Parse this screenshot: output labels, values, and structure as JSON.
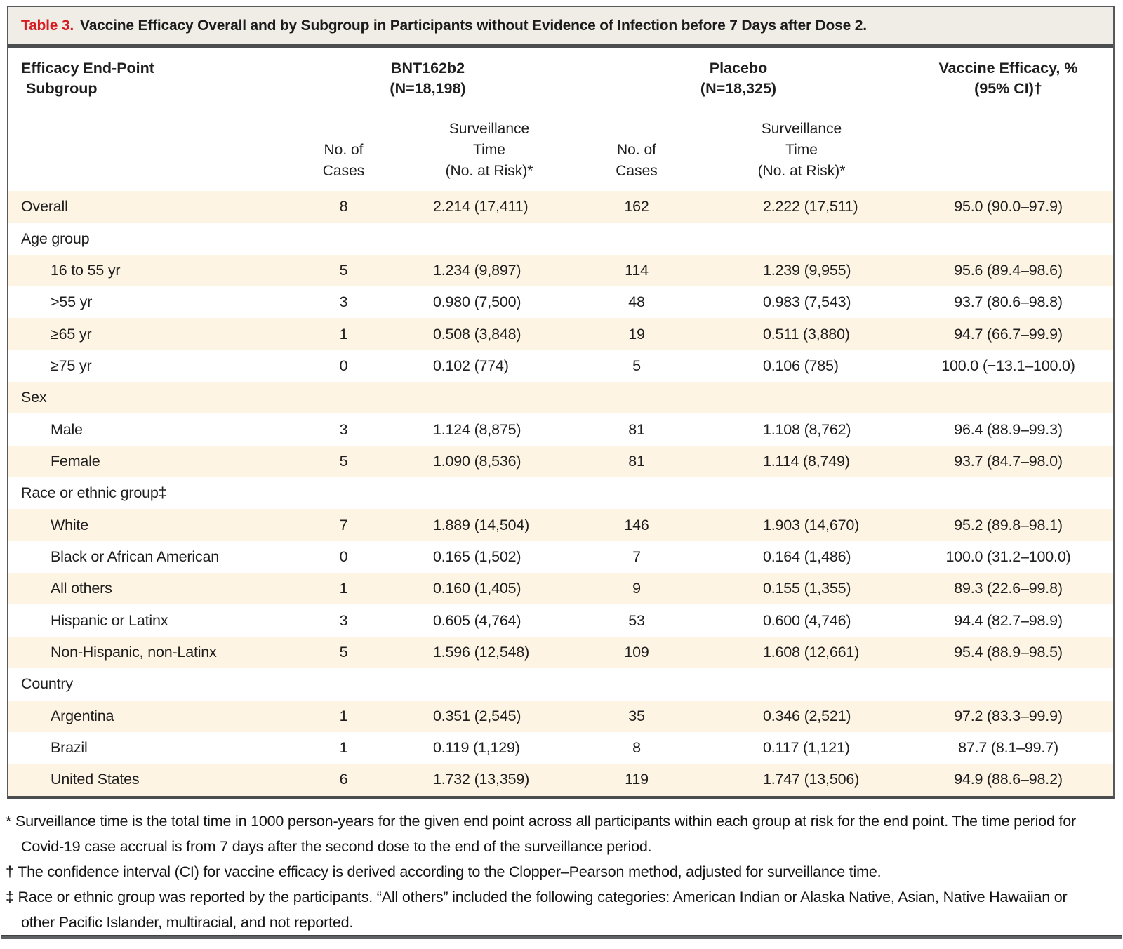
{
  "title": {
    "prefix": "Table 3.",
    "text": "Vaccine Efficacy Overall and by Subgroup in Participants without Evidence of Infection before 7 Days after Dose 2."
  },
  "colors": {
    "row_shade": "#fdf4e4",
    "title_bar_bg": "#f0ece6",
    "table_label_red": "#d71920",
    "frame_border": "#57585a"
  },
  "header": {
    "col_subgroup_line1": "Efficacy End-Point",
    "col_subgroup_line2": "Subgroup",
    "col_bnt_line1": "BNT162b2",
    "col_bnt_line2": "(N=18,198)",
    "col_placebo_line1": "Placebo",
    "col_placebo_line2": "(N=18,325)",
    "col_efficacy_line1": "Vaccine Efficacy, %",
    "col_efficacy_line2": "(95% CI)†",
    "sub_cases": "No. of\nCases",
    "sub_surveillance": "Surveillance\nTime\n(No. at Risk)*"
  },
  "rows": [
    {
      "label": "Overall",
      "section": false,
      "indent": false,
      "cells": [
        "8",
        "2.214 (17,411)",
        "162",
        "2.222 (17,511)",
        "95.0 (90.0–97.9)"
      ]
    },
    {
      "label": "Age group",
      "section": true,
      "indent": false
    },
    {
      "label": "16 to 55 yr",
      "section": false,
      "indent": true,
      "cells": [
        "5",
        "1.234 (9,897)",
        "114",
        "1.239 (9,955)",
        "95.6 (89.4–98.6)"
      ]
    },
    {
      "label": ">55 yr",
      "section": false,
      "indent": true,
      "cells": [
        "3",
        "0.980 (7,500)",
        "48",
        "0.983 (7,543)",
        "93.7 (80.6–98.8)"
      ]
    },
    {
      "label": "≥65 yr",
      "section": false,
      "indent": true,
      "cells": [
        "1",
        "0.508 (3,848)",
        "19",
        "0.511 (3,880)",
        "94.7 (66.7–99.9)"
      ]
    },
    {
      "label": "≥75 yr",
      "section": false,
      "indent": true,
      "cells": [
        "0",
        "0.102 (774)",
        "5",
        "0.106 (785)",
        "100.0 (−13.1–100.0)"
      ]
    },
    {
      "label": "Sex",
      "section": true,
      "indent": false
    },
    {
      "label": "Male",
      "section": false,
      "indent": true,
      "cells": [
        "3",
        "1.124 (8,875)",
        "81",
        "1.108 (8,762)",
        "96.4 (88.9–99.3)"
      ]
    },
    {
      "label": "Female",
      "section": false,
      "indent": true,
      "cells": [
        "5",
        "1.090 (8,536)",
        "81",
        "1.114 (8,749)",
        "93.7 (84.7–98.0)"
      ]
    },
    {
      "label": "Race or ethnic group‡",
      "section": true,
      "indent": false
    },
    {
      "label": "White",
      "section": false,
      "indent": true,
      "cells": [
        "7",
        "1.889 (14,504)",
        "146",
        "1.903 (14,670)",
        "95.2 (89.8–98.1)"
      ]
    },
    {
      "label": "Black or African American",
      "section": false,
      "indent": true,
      "cells": [
        "0",
        "0.165 (1,502)",
        "7",
        "0.164 (1,486)",
        "100.0 (31.2–100.0)"
      ]
    },
    {
      "label": "All others",
      "section": false,
      "indent": true,
      "cells": [
        "1",
        "0.160 (1,405)",
        "9",
        "0.155 (1,355)",
        "89.3 (22.6–99.8)"
      ]
    },
    {
      "label": "Hispanic or Latinx",
      "section": false,
      "indent": true,
      "cells": [
        "3",
        "0.605 (4,764)",
        "53",
        "0.600 (4,746)",
        "94.4 (82.7–98.9)"
      ]
    },
    {
      "label": "Non-Hispanic, non-Latinx",
      "section": false,
      "indent": true,
      "cells": [
        "5",
        "1.596 (12,548)",
        "109",
        "1.608 (12,661)",
        "95.4 (88.9–98.5)"
      ]
    },
    {
      "label": "Country",
      "section": true,
      "indent": false
    },
    {
      "label": "Argentina",
      "section": false,
      "indent": true,
      "cells": [
        "1",
        "0.351 (2,545)",
        "35",
        "0.346 (2,521)",
        "97.2 (83.3–99.9)"
      ]
    },
    {
      "label": "Brazil",
      "section": false,
      "indent": true,
      "cells": [
        "1",
        "0.119 (1,129)",
        "8",
        "0.117 (1,121)",
        "87.7 (8.1–99.7)"
      ]
    },
    {
      "label": "United States",
      "section": false,
      "indent": true,
      "cells": [
        "6",
        "1.732 (13,359)",
        "119",
        "1.747 (13,506)",
        "94.9 (88.6–98.2)"
      ]
    }
  ],
  "footnotes": [
    {
      "marker": "*",
      "text": "Surveillance time is the total time in 1000 person-years for the given end point across all participants within each group at risk for the end point. The time period for Covid-19 case accrual is from 7 days after the second dose to the end of the surveillance period."
    },
    {
      "marker": "†",
      "text": "The confidence interval (CI) for vaccine efficacy is derived according to the Clopper–Pearson method, adjusted for surveillance time."
    },
    {
      "marker": "‡",
      "text": "Race or ethnic group was reported by the participants. “All others” included the following categories: American Indian or Alaska Native, Asian, Native Hawaiian or other Pacific Islander, multiracial, and not reported."
    }
  ]
}
